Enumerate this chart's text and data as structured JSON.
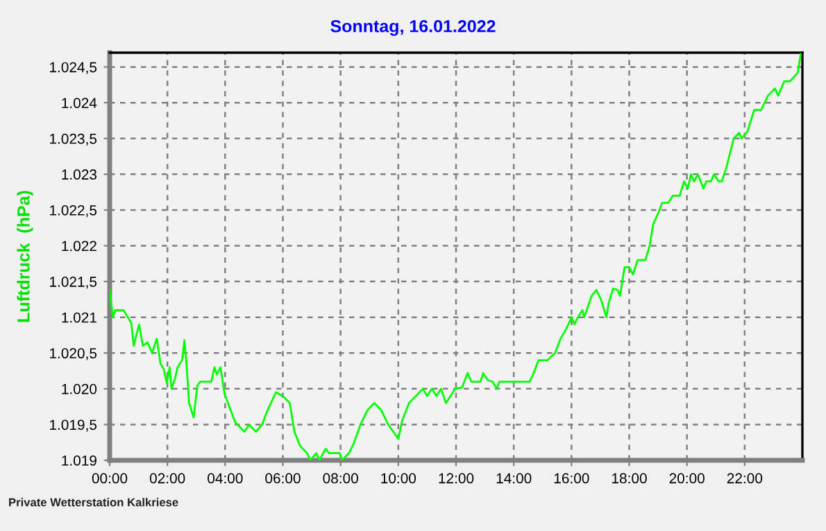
{
  "chart_data": {
    "type": "line",
    "title": "Sonntag, 16.01.2022",
    "ylabel": "Luftdruck  (hPa)",
    "annotations": [
      "Private Wetterstation Kalkriese"
    ],
    "xlim": [
      0,
      24
    ],
    "xticks": [
      {
        "value": 0,
        "label": "00:00"
      },
      {
        "value": 2,
        "label": "02:00"
      },
      {
        "value": 4,
        "label": "04:00"
      },
      {
        "value": 6,
        "label": "06:00"
      },
      {
        "value": 8,
        "label": "08:00"
      },
      {
        "value": 10,
        "label": "10:00"
      },
      {
        "value": 12,
        "label": "12:00"
      },
      {
        "value": 14,
        "label": "14:00"
      },
      {
        "value": 16,
        "label": "16:00"
      },
      {
        "value": 18,
        "label": "18:00"
      },
      {
        "value": 20,
        "label": "20:00"
      },
      {
        "value": 22,
        "label": "22:00"
      }
    ],
    "ylim": [
      1019,
      1024.7
    ],
    "yticks": [
      {
        "value": 1019,
        "label": "1.019"
      },
      {
        "value": 1019.5,
        "label": "1.019,5"
      },
      {
        "value": 1020,
        "label": "1.020"
      },
      {
        "value": 1020.5,
        "label": "1.020,5"
      },
      {
        "value": 1021,
        "label": "1.021"
      },
      {
        "value": 1021.5,
        "label": "1.021,5"
      },
      {
        "value": 1022,
        "label": "1.022"
      },
      {
        "value": 1022.5,
        "label": "1.022,5"
      },
      {
        "value": 1023,
        "label": "1.023"
      },
      {
        "value": 1023.5,
        "label": "1.023,5"
      },
      {
        "value": 1024,
        "label": "1.024"
      },
      {
        "value": 1024.5,
        "label": "1.024,5"
      }
    ],
    "grid": true,
    "legend": false,
    "marker": "none",
    "line_style": "solid",
    "series": [
      {
        "color": "#00ff00",
        "x": [
          0,
          0.11,
          0.19,
          0.48,
          0.75,
          0.83,
          1.02,
          1.15,
          1.31,
          1.47,
          1.63,
          1.76,
          1.87,
          1.98,
          2.08,
          2.14,
          2.27,
          2.35,
          2.51,
          2.59,
          2.67,
          2.75,
          2.91,
          3.04,
          3.15,
          3.52,
          3.63,
          3.71,
          3.84,
          3.98,
          4.19,
          4.35,
          4.67,
          4.83,
          5.07,
          5.28,
          5.47,
          5.76,
          6.0,
          6.24,
          6.4,
          6.6,
          6.84,
          6.95,
          7.16,
          7.27,
          7.48,
          7.6,
          7.97,
          8.05,
          8.29,
          8.45,
          8.69,
          8.93,
          9.17,
          9.41,
          9.65,
          10.0,
          10.13,
          10.37,
          10.61,
          10.85,
          11.0,
          11.16,
          11.32,
          11.48,
          11.65,
          11.81,
          11.97,
          12.21,
          12.4,
          12.53,
          12.85,
          12.94,
          13.1,
          13.26,
          13.42,
          13.5,
          14.55,
          14.67,
          14.86,
          15.17,
          15.43,
          15.62,
          15.81,
          16.0,
          16.1,
          16.22,
          16.38,
          16.44,
          16.7,
          16.86,
          17.02,
          17.21,
          17.29,
          17.44,
          17.6,
          17.68,
          17.84,
          18.0,
          18.13,
          18.29,
          18.56,
          18.71,
          18.83,
          19.03,
          19.14,
          19.35,
          19.51,
          19.75,
          19.9,
          20.03,
          20.14,
          20.25,
          20.38,
          20.57,
          20.67,
          20.83,
          20.94,
          21.1,
          21.21,
          21.37,
          21.62,
          21.81,
          21.89,
          22.1,
          22.33,
          22.57,
          22.81,
          23.05,
          23.16,
          23.37,
          23.57,
          23.84,
          23.94
        ],
        "values": [
          1021.38,
          1021.0,
          1021.1,
          1021.1,
          1020.92,
          1020.6,
          1020.9,
          1020.6,
          1020.65,
          1020.5,
          1020.7,
          1020.35,
          1020.28,
          1020.08,
          1020.3,
          1020.0,
          1020.15,
          1020.3,
          1020.4,
          1020.68,
          1020.3,
          1019.8,
          1019.6,
          1020.05,
          1020.1,
          1020.1,
          1020.3,
          1020.2,
          1020.3,
          1019.93,
          1019.7,
          1019.53,
          1019.4,
          1019.5,
          1019.4,
          1019.5,
          1019.7,
          1019.95,
          1019.9,
          1019.8,
          1019.4,
          1019.2,
          1019.1,
          1019.0,
          1019.1,
          1019.0,
          1019.16,
          1019.1,
          1019.1,
          1019.0,
          1019.1,
          1019.23,
          1019.5,
          1019.7,
          1019.8,
          1019.7,
          1019.5,
          1019.3,
          1019.55,
          1019.8,
          1019.9,
          1020.0,
          1019.9,
          1020.0,
          1019.9,
          1020.0,
          1019.8,
          1019.9,
          1020.0,
          1020.02,
          1020.22,
          1020.1,
          1020.1,
          1020.22,
          1020.12,
          1020.1,
          1020.0,
          1020.1,
          1020.1,
          1020.2,
          1020.4,
          1020.4,
          1020.5,
          1020.7,
          1020.83,
          1021.0,
          1020.9,
          1021.0,
          1021.1,
          1021.0,
          1021.3,
          1021.38,
          1021.25,
          1021.0,
          1021.2,
          1021.4,
          1021.38,
          1021.3,
          1021.7,
          1021.7,
          1021.6,
          1021.8,
          1021.8,
          1022.0,
          1022.3,
          1022.48,
          1022.6,
          1022.6,
          1022.7,
          1022.7,
          1022.9,
          1022.8,
          1023.0,
          1022.9,
          1023.0,
          1022.8,
          1022.9,
          1022.9,
          1023.0,
          1022.9,
          1022.9,
          1023.1,
          1023.5,
          1023.58,
          1023.5,
          1023.6,
          1023.9,
          1023.9,
          1024.1,
          1024.2,
          1024.1,
          1024.3,
          1024.3,
          1024.42,
          1024.68
        ]
      }
    ]
  }
}
